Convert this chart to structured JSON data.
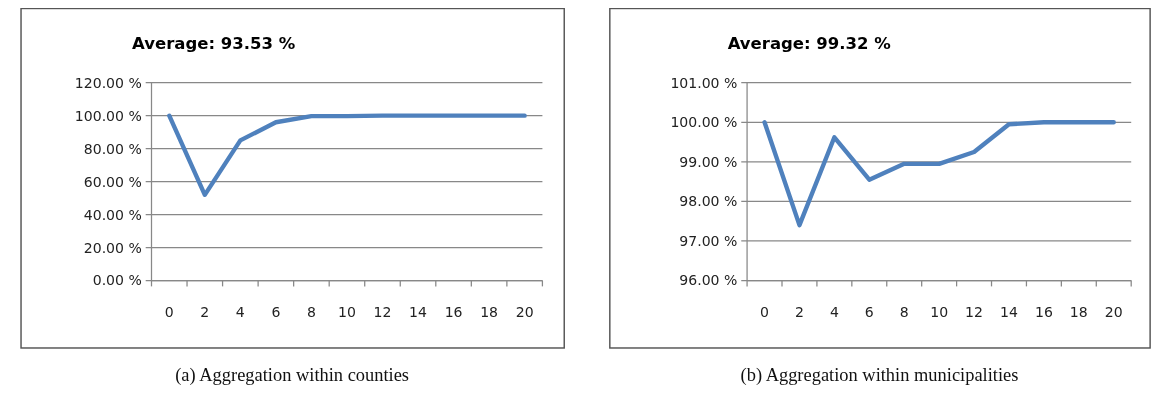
{
  "chart_data": [
    {
      "type": "line",
      "title": "Average: 93.53 %",
      "annotations": [
        "(a) Aggregation within counties"
      ],
      "categories": [
        "0",
        "2",
        "4",
        "6",
        "8",
        "10",
        "12",
        "14",
        "16",
        "18",
        "20"
      ],
      "series": [
        {
          "color": "#4f81bd",
          "values": [
            100,
            52,
            85,
            96,
            99.7,
            99.7,
            100,
            100,
            100,
            100,
            100
          ]
        }
      ],
      "ylim": [
        0,
        120
      ],
      "yticks": [
        {
          "value": 0,
          "label": "0.00 %"
        },
        {
          "value": 20,
          "label": "20.00 %"
        },
        {
          "value": 40,
          "label": "40.00 %"
        },
        {
          "value": 60,
          "label": "60.00 %"
        },
        {
          "value": 80,
          "label": "80.00 %"
        },
        {
          "value": 100,
          "label": "100.00 %"
        },
        {
          "value": 120,
          "label": "120.00 %"
        }
      ],
      "grid": "y"
    },
    {
      "type": "line",
      "title": "Average: 99.32 %",
      "annotations": [
        "(b) Aggregation within municipalities"
      ],
      "categories": [
        "0",
        "2",
        "4",
        "6",
        "8",
        "10",
        "12",
        "14",
        "16",
        "18",
        "20"
      ],
      "series": [
        {
          "color": "#4f81bd",
          "values": [
            100,
            97.4,
            99.62,
            98.55,
            98.95,
            98.95,
            99.25,
            99.95,
            100,
            100,
            100
          ]
        }
      ],
      "ylim": [
        96,
        101
      ],
      "yticks": [
        {
          "value": 96,
          "label": "96.00 %"
        },
        {
          "value": 97,
          "label": "97.00 %"
        },
        {
          "value": 98,
          "label": "98.00 %"
        },
        {
          "value": 99,
          "label": "99.00 %"
        },
        {
          "value": 100,
          "label": "100.00 %"
        },
        {
          "value": 101,
          "label": "101.00 %"
        }
      ],
      "grid": "y"
    }
  ]
}
